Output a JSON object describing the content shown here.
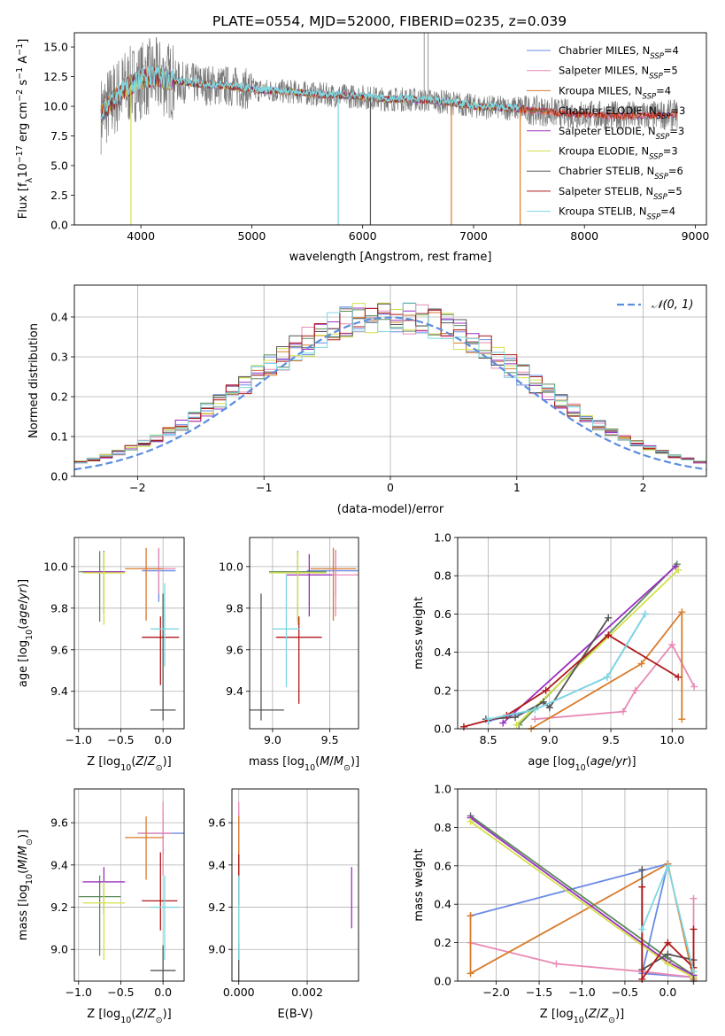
{
  "figure_title": "PLATE=0554, MJD=52000, FIBERID=0235, z=0.039",
  "series": [
    {
      "name": "Chabrier MILES, N$_{SSP}$=4",
      "label_main": "Chabrier MILES, N",
      "label_sub": "SSP",
      "label_tail": "=4",
      "color": "#6a8be6"
    },
    {
      "name": "Salpeter MILES, N$_{SSP}$=5",
      "label_main": "Salpeter MILES, N",
      "label_sub": "SSP",
      "label_tail": "=5",
      "color": "#e88ab5"
    },
    {
      "name": "Kroupa MILES, N$_{SSP}$=4",
      "label_main": "Kroupa MILES, N",
      "label_sub": "SSP",
      "label_tail": "=4",
      "color": "#d97b2c"
    },
    {
      "name": "Chabrier ELODIE, N$_{SSP}$=3",
      "label_main": "Chabrier ELODIE, N",
      "label_sub": "SSP",
      "label_tail": "=3",
      "color": "#5a8a5a"
    },
    {
      "name": "Salpeter ELODIE, N$_{SSP}$=3",
      "label_main": "Salpeter ELODIE, N",
      "label_sub": "SSP",
      "label_tail": "=3",
      "color": "#9b30c0"
    },
    {
      "name": "Kroupa ELODIE, N$_{SSP}$=3",
      "label_main": "Kroupa ELODIE, N",
      "label_sub": "SSP",
      "label_tail": "=3",
      "color": "#d4e04a"
    },
    {
      "name": "Chabrier STELIB, N$_{SSP}$=6",
      "label_main": "Chabrier STELIB, N",
      "label_sub": "SSP",
      "label_tail": "=6",
      "color": "#555555"
    },
    {
      "name": "Salpeter STELIB, N$_{SSP}$=5",
      "label_main": "Salpeter STELIB, N",
      "label_sub": "SSP",
      "label_tail": "=5",
      "color": "#b01818"
    },
    {
      "name": "Kroupa STELIB, N$_{SSP}$=4",
      "label_main": "Kroupa STELIB, N",
      "label_sub": "SSP",
      "label_tail": "=4",
      "color": "#7dd8e0"
    }
  ],
  "chart_data": [
    {
      "id": "spectrum",
      "type": "line",
      "xlabel": "wavelength [Angstrom, rest frame]",
      "ylabel": "Flux [f",
      "ylabel_parts": [
        "Flux [f",
        "λ",
        "10",
        "−17",
        " erg cm",
        "−2",
        " s",
        "−1",
        " A",
        "−1",
        "]"
      ],
      "xlim": [
        3400,
        9100
      ],
      "ylim": [
        0,
        16.2
      ],
      "xticks": [
        4000,
        5000,
        6000,
        7000,
        8000,
        9000
      ],
      "yticks": [
        0.0,
        2.5,
        5.0,
        7.5,
        10.0,
        12.5,
        15.0
      ],
      "continuum": {
        "x": [
          3650,
          3750,
          3850,
          3950,
          4050,
          4150,
          4250,
          4400,
          4600,
          4800,
          5000,
          5200,
          5400,
          5600,
          5800,
          6000,
          6200,
          6400,
          6600,
          6800,
          7000,
          7200,
          7400,
          7600,
          7800,
          8000,
          8200,
          8400,
          8600,
          8800
        ],
        "y": [
          9.5,
          10.5,
          11.5,
          12.0,
          12.4,
          12.5,
          12.2,
          12.0,
          11.8,
          11.7,
          11.4,
          11.3,
          11.2,
          11.0,
          10.9,
          10.8,
          10.6,
          10.6,
          10.5,
          10.3,
          10.0,
          9.9,
          9.8,
          9.6,
          9.4,
          9.3,
          9.2,
          9.2,
          9.2,
          9.3
        ]
      },
      "data_xrange": [
        3640,
        8840
      ],
      "model_xrange": [
        3640,
        7420
      ],
      "spikes_down": [
        {
          "x": 3910,
          "y": 0
        },
        {
          "x": 5780,
          "y": 0
        },
        {
          "x": 6070,
          "y": 0
        },
        {
          "x": 6800,
          "y": 0
        },
        {
          "x": 7420,
          "y": 0
        }
      ],
      "grid": false,
      "legend": "top-right"
    },
    {
      "id": "residual_hist",
      "type": "histogram",
      "xlabel": "(data-model)/error",
      "ylabel": "Normed distribution",
      "xlim": [
        -2.5,
        2.5
      ],
      "ylim": [
        0,
        0.48
      ],
      "xticks": [
        -2,
        -1,
        0,
        1,
        2
      ],
      "yticks": [
        0.0,
        0.1,
        0.2,
        0.3,
        0.4
      ],
      "bin_width": 0.1,
      "reference": {
        "name": "N(0,1)",
        "label": "𝒩(0, 1)",
        "color": "#5b8ede"
      },
      "grid": true,
      "legend": "top-right"
    },
    {
      "id": "age_vs_Z",
      "type": "errorbar",
      "xlabel": "Z [log",
      "ylabel": "age  [log",
      "xlim": [
        -1.05,
        0.25
      ],
      "ylim": [
        9.22,
        10.14
      ],
      "xticks": [
        -1.0,
        -0.5,
        0.0
      ],
      "xticklabels": [
        "−1.0",
        "−0.5",
        "0.0"
      ],
      "yticks": [
        9.4,
        9.6,
        9.8,
        10.0
      ],
      "points": [
        {
          "s": 0,
          "x": -0.05,
          "y": 9.98,
          "xe": [
            0.2,
            0.2
          ],
          "ye": [
            0.15,
            0.1
          ]
        },
        {
          "s": 1,
          "x": -0.05,
          "y": 9.99,
          "xe": [
            0.2,
            0.2
          ],
          "ye": [
            0.12,
            0.1
          ]
        },
        {
          "s": 2,
          "x": -0.2,
          "y": 9.99,
          "xe": [
            0.25,
            0.2
          ],
          "ye": [
            0.25,
            0.1
          ]
        },
        {
          "s": 3,
          "x": -0.75,
          "y": 9.975,
          "xe": [
            0.25,
            0.25
          ],
          "ye": [
            0.24,
            0.1
          ]
        },
        {
          "s": 4,
          "x": -0.7,
          "y": 9.975,
          "xe": [
            0.25,
            0.25
          ],
          "ye": [
            0.2,
            0.1
          ]
        },
        {
          "s": 5,
          "x": -0.7,
          "y": 9.97,
          "xe": [
            0.25,
            0.25
          ],
          "ye": [
            0.25,
            0.1
          ]
        },
        {
          "s": 6,
          "x": 0.0,
          "y": 9.31,
          "xe": [
            0.15,
            0.15
          ],
          "ye": [
            0.05,
            0.56
          ]
        },
        {
          "s": 7,
          "x": -0.03,
          "y": 9.66,
          "xe": [
            0.22,
            0.22
          ],
          "ye": [
            0.23,
            0.1
          ]
        },
        {
          "s": 8,
          "x": 0.02,
          "y": 9.7,
          "xe": [
            0.17,
            0.17
          ],
          "ye": [
            0.18,
            0.22
          ]
        }
      ]
    },
    {
      "id": "age_vs_mass",
      "type": "errorbar",
      "xlabel": "mass [log",
      "ylabel": "",
      "xlim": [
        8.8,
        9.75
      ],
      "ylim": [
        9.22,
        10.14
      ],
      "xticks": [
        9.0,
        9.5
      ],
      "yticks": [
        9.4,
        9.6,
        9.8,
        10.0
      ],
      "points": [
        {
          "s": 0,
          "x": 9.55,
          "y": 9.98,
          "xe": [
            0.25,
            0.25
          ],
          "ye": [
            0.12,
            0.1
          ]
        },
        {
          "s": 1,
          "x": 9.55,
          "y": 9.96,
          "xe": [
            0.25,
            0.25
          ],
          "ye": [
            0.2,
            0.12
          ]
        },
        {
          "s": 2,
          "x": 9.53,
          "y": 9.99,
          "xe": [
            0.2,
            0.2
          ],
          "ye": [
            0.25,
            0.1
          ]
        },
        {
          "s": 3,
          "x": 9.22,
          "y": 9.975,
          "xe": [
            0.25,
            0.25
          ],
          "ye": [
            0.24,
            0.1
          ]
        },
        {
          "s": 4,
          "x": 9.32,
          "y": 9.96,
          "xe": [
            0.2,
            0.2
          ],
          "ye": [
            0.2,
            0.1
          ]
        },
        {
          "s": 5,
          "x": 9.22,
          "y": 9.97,
          "xe": [
            0.25,
            0.25
          ],
          "ye": [
            0.25,
            0.1
          ]
        },
        {
          "s": 6,
          "x": 8.9,
          "y": 9.31,
          "xe": [
            0.1,
            0.2
          ],
          "ye": [
            0.05,
            0.56
          ]
        },
        {
          "s": 7,
          "x": 9.23,
          "y": 9.66,
          "xe": [
            0.2,
            0.2
          ],
          "ye": [
            0.32,
            0.1
          ]
        },
        {
          "s": 8,
          "x": 9.12,
          "y": 9.7,
          "xe": [
            0.12,
            0.12
          ],
          "ye": [
            0.28,
            0.26
          ]
        }
      ]
    },
    {
      "id": "weight_vs_age",
      "type": "line",
      "xlabel": "age  [log",
      "ylabel": "mass weight",
      "xlim": [
        8.25,
        10.28
      ],
      "ylim": [
        0,
        1
      ],
      "xticks": [
        8.5,
        9.0,
        9.5,
        10.0
      ],
      "yticks": [
        0.0,
        0.2,
        0.4,
        0.6,
        0.8,
        1.0
      ],
      "lines": [
        {
          "s": 0,
          "x": [
            8.5,
            8.88,
            9.47,
            9.78
          ],
          "y": [
            0.04,
            0.1,
            0.27,
            0.6
          ]
        },
        {
          "s": 1,
          "x": [
            8.88,
            9.6,
            9.7,
            10.0,
            10.18
          ],
          "y": [
            0.05,
            0.09,
            0.2,
            0.44,
            0.22
          ]
        },
        {
          "s": 2,
          "x": [
            8.85,
            9.75,
            10.08,
            10.08
          ],
          "y": [
            0.0,
            0.34,
            0.61,
            0.05
          ]
        },
        {
          "s": 3,
          "x": [
            8.75,
            10.04
          ],
          "y": [
            0.02,
            0.86
          ]
        },
        {
          "s": 4,
          "x": [
            8.62,
            10.03
          ],
          "y": [
            0.03,
            0.85
          ]
        },
        {
          "s": 5,
          "x": [
            8.73,
            10.05
          ],
          "y": [
            0.02,
            0.83
          ]
        },
        {
          "s": 6,
          "x": [
            8.48,
            8.72,
            8.95,
            9.0,
            9.48
          ],
          "y": [
            0.05,
            0.06,
            0.14,
            0.11,
            0.58
          ]
        },
        {
          "s": 7,
          "x": [
            8.3,
            8.65,
            8.97,
            9.48,
            10.05
          ],
          "y": [
            0.01,
            0.07,
            0.2,
            0.49,
            0.27
          ]
        },
        {
          "s": 8,
          "x": [
            8.5,
            8.88,
            9.47,
            9.78
          ],
          "y": [
            0.05,
            0.1,
            0.27,
            0.6
          ]
        }
      ]
    },
    {
      "id": "mass_vs_Z",
      "type": "errorbar",
      "xlabel": "Z [log",
      "ylabel": "mass [log",
      "xlim": [
        -1.05,
        0.25
      ],
      "ylim": [
        8.85,
        9.76
      ],
      "xticks": [
        -1.0,
        -0.5,
        0.0
      ],
      "xticklabels": [
        "−1.0",
        "−0.5",
        "0.0"
      ],
      "yticks": [
        9.0,
        9.2,
        9.4,
        9.6
      ],
      "points": [
        {
          "s": 0,
          "x": 0.0,
          "y": 9.55,
          "xe": [
            0.3,
            0.3
          ],
          "ye": [
            0.1,
            0.1
          ]
        },
        {
          "s": 1,
          "x": 0.0,
          "y": 9.55,
          "xe": [
            0.3,
            0.1
          ],
          "ye": [
            0.2,
            0.15
          ]
        },
        {
          "s": 2,
          "x": -0.2,
          "y": 9.53,
          "xe": [
            0.25,
            0.2
          ],
          "ye": [
            0.2,
            0.1
          ]
        },
        {
          "s": 3,
          "x": -0.75,
          "y": 9.25,
          "xe": [
            0.25,
            0.25
          ],
          "ye": [
            0.28,
            0.1
          ]
        },
        {
          "s": 4,
          "x": -0.7,
          "y": 9.32,
          "xe": [
            0.25,
            0.25
          ],
          "ye": [
            0.15,
            0.07
          ]
        },
        {
          "s": 5,
          "x": -0.7,
          "y": 9.22,
          "xe": [
            0.25,
            0.25
          ],
          "ye": [
            0.27,
            0.1
          ]
        },
        {
          "s": 6,
          "x": 0.0,
          "y": 8.9,
          "xe": [
            0.15,
            0.15
          ],
          "ye": [
            0.05,
            0.12
          ]
        },
        {
          "s": 7,
          "x": -0.03,
          "y": 9.23,
          "xe": [
            0.22,
            0.2
          ],
          "ye": [
            0.14,
            0.23
          ]
        },
        {
          "s": 8,
          "x": 0.02,
          "y": 9.2,
          "xe": [
            0.17,
            0.17
          ],
          "ye": [
            0.25,
            0.15
          ]
        }
      ]
    },
    {
      "id": "mass_vs_EBV",
      "type": "errorbar",
      "xlabel": "E(B-V)",
      "ylabel": "",
      "xlim": [
        -0.0002,
        0.0035
      ],
      "ylim": [
        8.85,
        9.76
      ],
      "xticks": [
        0.0,
        0.002
      ],
      "xticklabels": [
        "0.000",
        "0.002"
      ],
      "yticks": [
        9.0,
        9.2,
        9.4,
        9.6
      ],
      "points": [
        {
          "s": 0,
          "x": 0.0,
          "y": 9.55,
          "xe": [
            0,
            0
          ],
          "ye": [
            0.1,
            0.1
          ]
        },
        {
          "s": 1,
          "x": 0.0,
          "y": 9.55,
          "xe": [
            0,
            0
          ],
          "ye": [
            0.2,
            0.15
          ]
        },
        {
          "s": 2,
          "x": 0.0,
          "y": 9.53,
          "xe": [
            0,
            0
          ],
          "ye": [
            0.2,
            0.1
          ]
        },
        {
          "s": 3,
          "x": 0.0,
          "y": 9.25,
          "xe": [
            0,
            0
          ],
          "ye": [
            0.28,
            0.1
          ]
        },
        {
          "s": 4,
          "x": 0.0033,
          "y": 9.25,
          "xe": [
            0,
            0
          ],
          "ye": [
            0.15,
            0.14
          ]
        },
        {
          "s": 5,
          "x": 0.0,
          "y": 9.22,
          "xe": [
            0,
            0
          ],
          "ye": [
            0.27,
            0.1
          ]
        },
        {
          "s": 6,
          "x": 0.0,
          "y": 8.95,
          "xe": [
            0,
            0
          ],
          "ye": [
            0.1,
            0.08
          ]
        },
        {
          "s": 7,
          "x": 0.0,
          "y": 9.35,
          "xe": [
            0,
            0
          ],
          "ye": [
            0.14,
            0.1
          ]
        },
        {
          "s": 8,
          "x": 0.0,
          "y": 9.2,
          "xe": [
            0,
            0
          ],
          "ye": [
            0.25,
            0.15
          ]
        }
      ]
    },
    {
      "id": "weight_vs_Z",
      "type": "line",
      "xlabel": "Z [log",
      "ylabel": "mass weight",
      "xlim": [
        -2.45,
        0.45
      ],
      "ylim": [
        0,
        1
      ],
      "xticks": [
        -2.0,
        -1.5,
        -1.0,
        -0.5,
        0.0
      ],
      "xticklabels": [
        "−2.0",
        "−1.5",
        "−1.0",
        "−0.5",
        "0.0"
      ],
      "yticks": [
        0.0,
        0.2,
        0.4,
        0.6,
        0.8,
        1.0
      ],
      "lines": [
        {
          "s": 0,
          "x": [
            -2.3,
            0.0,
            -0.3,
            0.3
          ],
          "y": [
            0.34,
            0.61,
            0.04,
            0.02
          ]
        },
        {
          "s": 1,
          "x": [
            -2.3,
            -1.3,
            -0.3,
            0.3,
            0.3
          ],
          "y": [
            0.2,
            0.09,
            0.05,
            0.02,
            0.43
          ]
        },
        {
          "s": 2,
          "x": [
            -2.3,
            -2.3,
            0.0,
            0.3
          ],
          "y": [
            0.34,
            0.04,
            0.61,
            0.01
          ]
        },
        {
          "s": 3,
          "x": [
            -2.3,
            0.0,
            0.3
          ],
          "y": [
            0.86,
            0.12,
            0.03
          ]
        },
        {
          "s": 4,
          "x": [
            -2.3,
            0.0,
            0.3
          ],
          "y": [
            0.85,
            0.1,
            0.03
          ]
        },
        {
          "s": 5,
          "x": [
            -2.3,
            0.0,
            0.3
          ],
          "y": [
            0.83,
            0.09,
            0.02
          ]
        },
        {
          "s": 6,
          "x": [
            -0.3,
            -0.3,
            0.0,
            0.3,
            0.3
          ],
          "y": [
            0.58,
            0.06,
            0.14,
            0.11,
            0.0
          ]
        },
        {
          "s": 7,
          "x": [
            -0.3,
            -0.3,
            0.0,
            0.3,
            0.3
          ],
          "y": [
            0.49,
            0.01,
            0.2,
            0.07,
            0.27
          ]
        },
        {
          "s": 8,
          "x": [
            -0.3,
            0.0,
            0.3
          ],
          "y": [
            0.27,
            0.6,
            0.05
          ]
        }
      ]
    }
  ]
}
